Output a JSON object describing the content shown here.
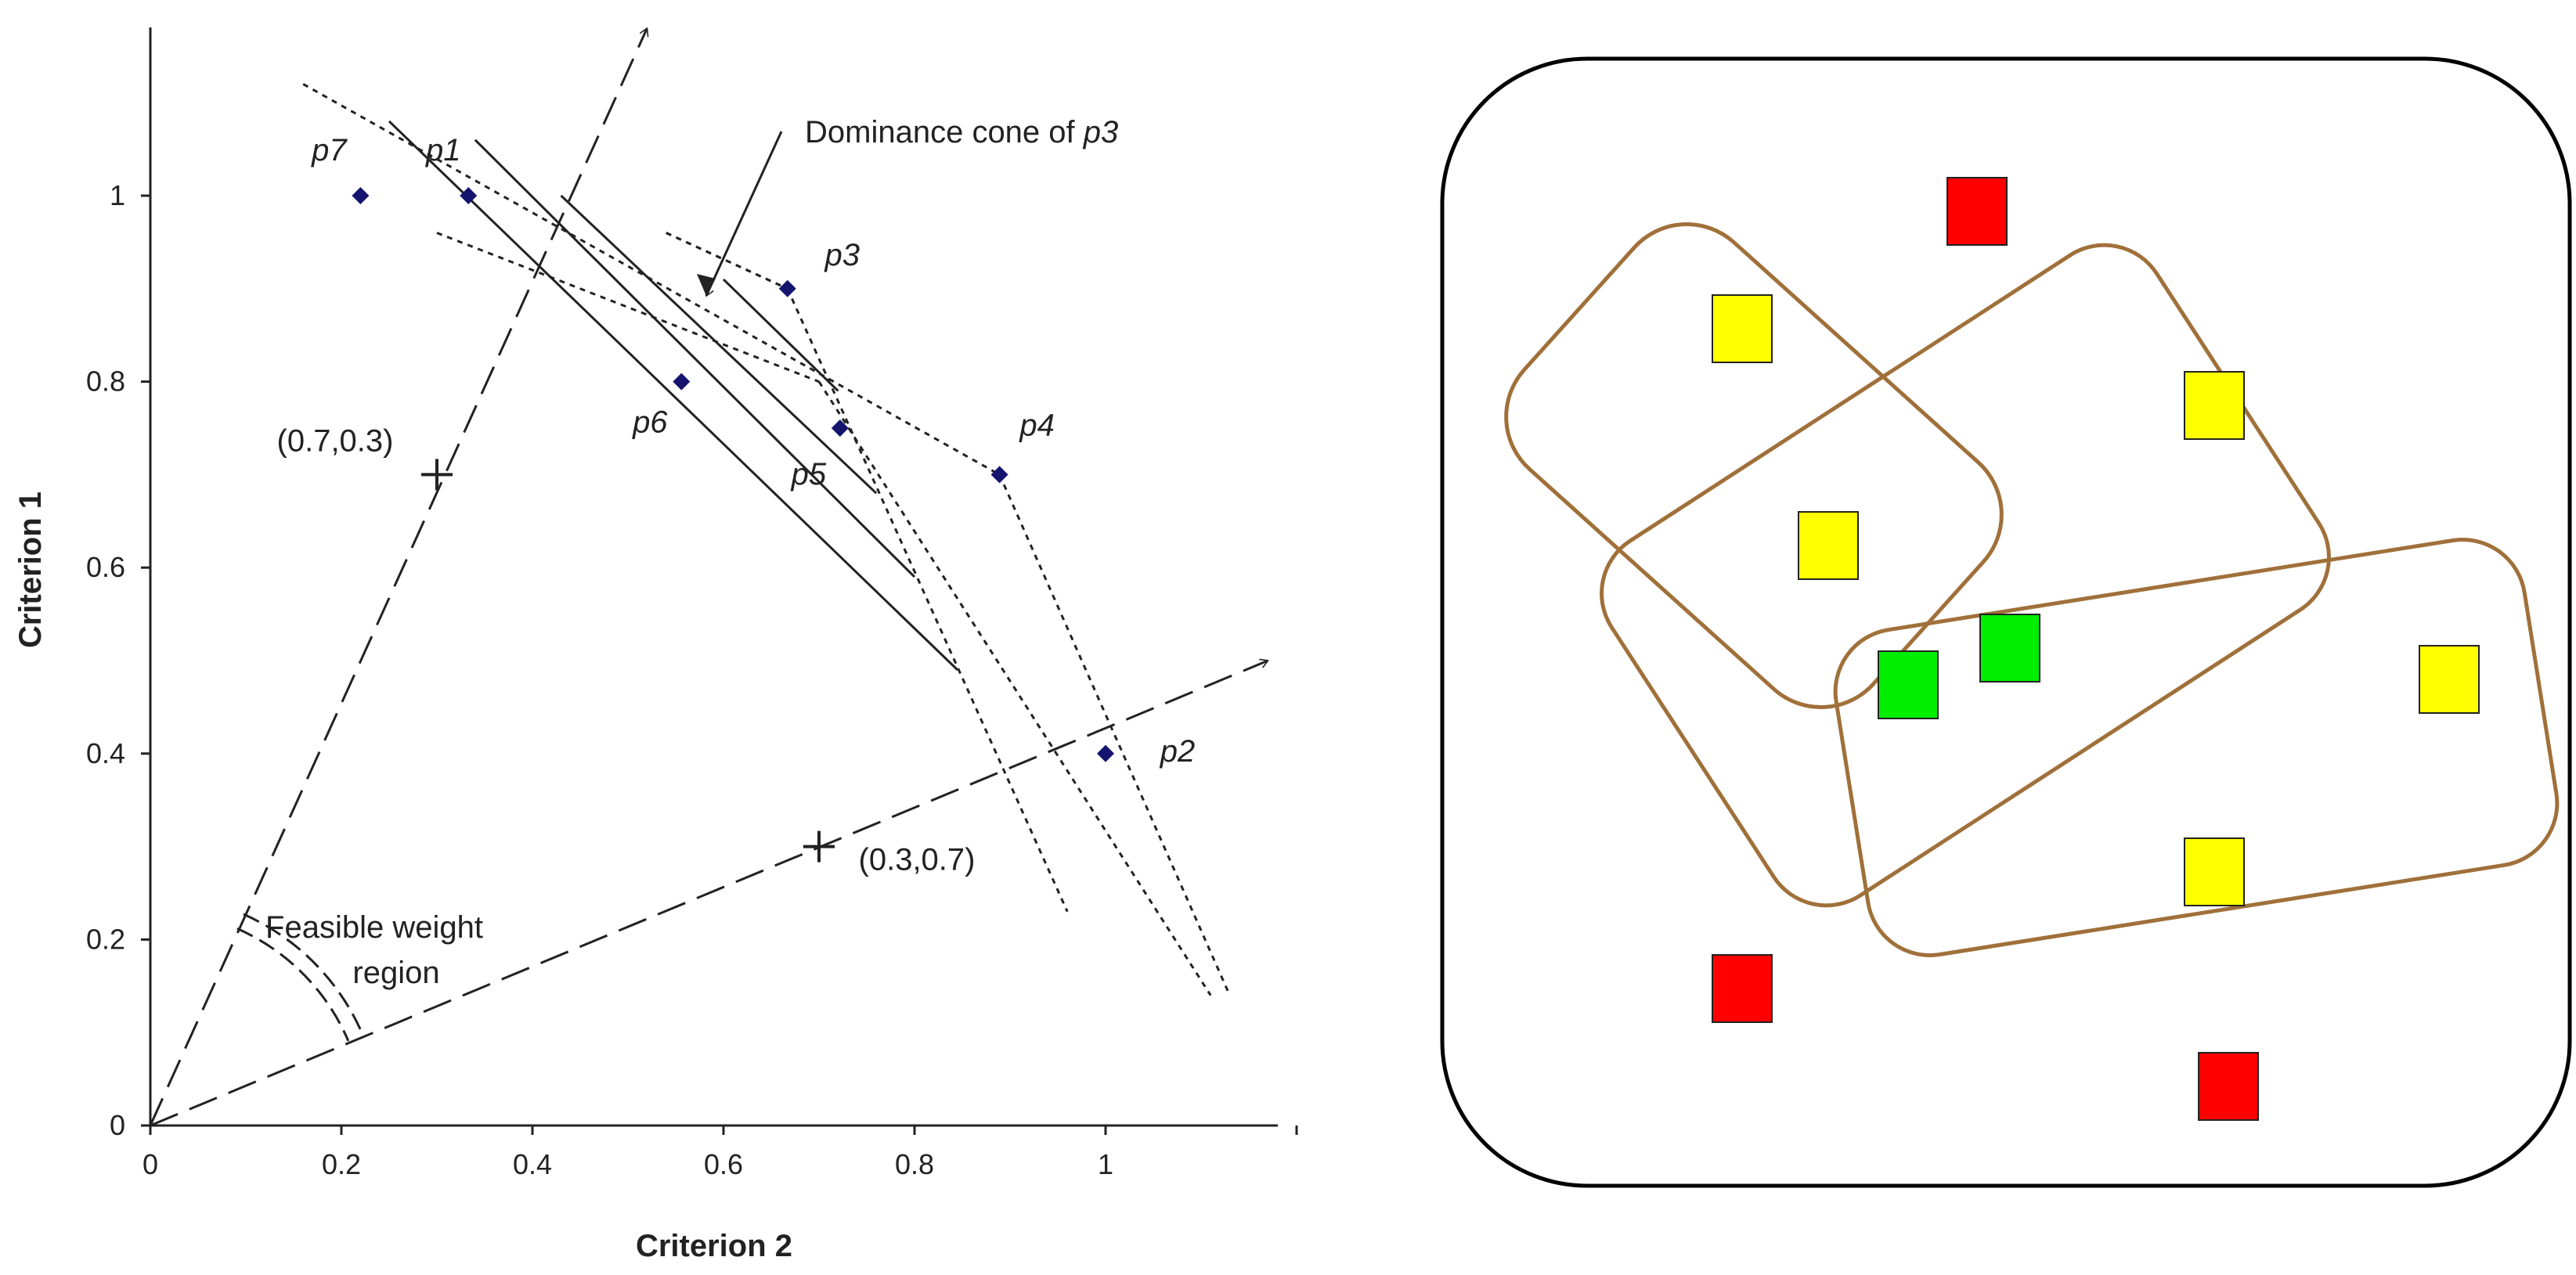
{
  "chart_data": [
    {
      "type": "scatter",
      "xlabel": "Criterion 2",
      "ylabel": "Criterion 1",
      "xlim": [
        0,
        1.18
      ],
      "ylim": [
        0,
        1.18
      ],
      "xticks": [
        "0",
        "0.2",
        "0.4",
        "0.6",
        "0.8",
        "1"
      ],
      "yticks": [
        "0",
        "0.2",
        "0.4",
        "0.6",
        "0.8",
        "1"
      ],
      "grid": false,
      "marker_color": "#14146e",
      "points": [
        {
          "label": "p7",
          "x": 0.22,
          "y": 1.0
        },
        {
          "label": "p1",
          "x": 0.333,
          "y": 1.0
        },
        {
          "label": "p3",
          "x": 0.667,
          "y": 0.9
        },
        {
          "label": "p6",
          "x": 0.556,
          "y": 0.8
        },
        {
          "label": "p5",
          "x": 0.722,
          "y": 0.75
        },
        {
          "label": "p4",
          "x": 0.889,
          "y": 0.7
        },
        {
          "label": "p2",
          "x": 1.0,
          "y": 0.4
        }
      ],
      "weight_points": [
        {
          "label": "(0.7,0.3)",
          "x": 0.3,
          "y": 0.7
        },
        {
          "label": "(0.3,0.7)",
          "x": 0.7,
          "y": 0.3
        }
      ],
      "annotations": {
        "dominance_prefix": "Dominance cone of ",
        "dominance_point": "p3",
        "feasible_line1": "Feasible weight",
        "feasible_line2": "region"
      }
    },
    {
      "type": "diagram",
      "frame_color": "#000000",
      "group_outline_color": "#a0703a",
      "colors": {
        "red": "#ff0000",
        "yellow": "#ffff00",
        "green": "#00ee00"
      },
      "squares": [
        {
          "color": "red"
        },
        {
          "color": "yellow"
        },
        {
          "color": "yellow"
        },
        {
          "color": "yellow"
        },
        {
          "color": "green"
        },
        {
          "color": "green"
        },
        {
          "color": "yellow"
        },
        {
          "color": "yellow"
        },
        {
          "color": "red"
        },
        {
          "color": "red"
        }
      ],
      "group_count": 3
    }
  ]
}
